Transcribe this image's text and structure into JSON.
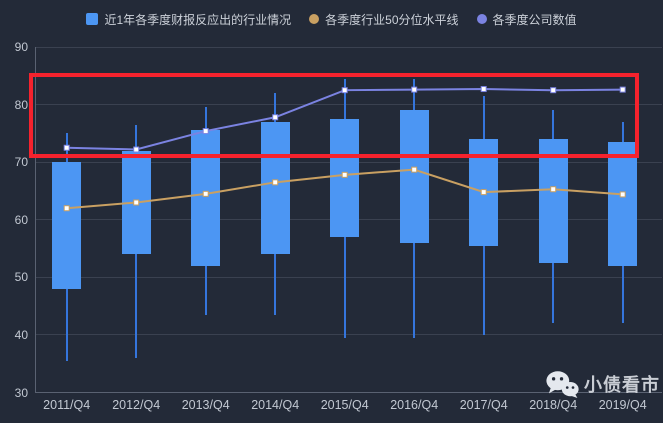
{
  "watermark": {
    "label": "小债看市",
    "icon": "wechat-icon"
  },
  "colors": {
    "background": "#232a38",
    "grid": "#3a4150",
    "axis": "#5a6272",
    "axis_label": "#c2c8d2",
    "legend_text": "#ccd1d9",
    "candle": "#4c96f3",
    "wick": "#3575dc",
    "median_line": "#c9a062",
    "company_line": "#7b83e2",
    "marker_fill": "#ffffff",
    "annotation": "#f5222d",
    "watermark": "#c9cdd4"
  },
  "chart_data": {
    "type": "candlestick",
    "title": "",
    "categories": [
      "2011/Q4",
      "2012/Q4",
      "2013/Q4",
      "2014/Q4",
      "2015/Q4",
      "2016/Q4",
      "2017/Q4",
      "2018/Q4",
      "2019/Q4"
    ],
    "ylim": [
      30,
      90
    ],
    "y_ticks": [
      30,
      40,
      50,
      60,
      70,
      80,
      90
    ],
    "grid": "horizontal-only",
    "legend_position": "top-center",
    "series": [
      {
        "name": "近1年各季度财报反应出的行业情况",
        "type": "candlestick",
        "legend_marker": "square",
        "color": "#4c96f3",
        "points": [
          {
            "low": 35.5,
            "open": 48,
            "close": 70,
            "high": 75
          },
          {
            "low": 36,
            "open": 54,
            "close": 72,
            "high": 76.5
          },
          {
            "low": 43.5,
            "open": 52,
            "close": 75.5,
            "high": 79.5
          },
          {
            "low": 43.5,
            "open": 54,
            "close": 77,
            "high": 82
          },
          {
            "low": 39.5,
            "open": 57,
            "close": 77.5,
            "high": 84.5
          },
          {
            "low": 39.5,
            "open": 56,
            "close": 79,
            "high": 84.5
          },
          {
            "low": 40,
            "open": 55.5,
            "close": 74,
            "high": 81.5
          },
          {
            "low": 42,
            "open": 52.5,
            "close": 74,
            "high": 79
          },
          {
            "low": 42,
            "open": 52,
            "close": 73.5,
            "high": 77
          }
        ]
      },
      {
        "name": "各季度行业50分位水平线",
        "type": "line",
        "legend_marker": "circle",
        "point_marker": "square",
        "color": "#c9a062",
        "values": [
          62,
          63,
          64.5,
          66.5,
          67.8,
          68.7,
          64.8,
          65.3,
          64.4
        ]
      },
      {
        "name": "各季度公司数值",
        "type": "line",
        "legend_marker": "circle",
        "point_marker": "square",
        "color": "#7b83e2",
        "values": [
          72.5,
          72.2,
          75.4,
          77.8,
          82.5,
          82.6,
          82.7,
          82.5,
          82.6
        ]
      }
    ],
    "annotation": {
      "type": "rect",
      "y_from": 71,
      "y_to": 85.2,
      "color": "#f5222d"
    }
  }
}
